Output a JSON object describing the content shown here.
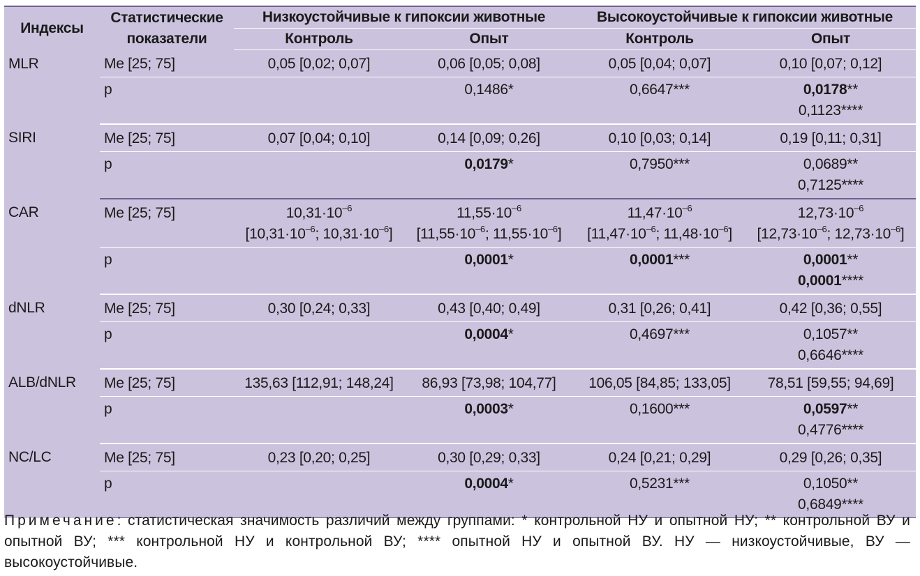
{
  "table": {
    "headers": {
      "index": "Индексы",
      "stat": "Статистические показатели",
      "low_group": "Низкоустойчивые к гипоксии животные",
      "high_group": "Высокоустойчивые к гипоксии животные",
      "control": "Контроль",
      "experiment": "Опыт"
    },
    "rows": [
      {
        "index": "MLR",
        "me_label": "Me [25; 75]",
        "p_label": "p",
        "me": [
          "0,05 [0,02; 0,07]",
          "0,06 [0,05; 0,08]",
          "0,05 [0,04; 0,07]",
          "0,10 [0,07; 0,12]"
        ],
        "p_low_exp": {
          "val": "0,1486",
          "mark": "*"
        },
        "p_high_ctrl": {
          "val": "0,6647",
          "mark": "***"
        },
        "p_high_exp_1": {
          "val": "0,0178",
          "mark": "**"
        },
        "p_high_exp_2": {
          "val": "0,1123",
          "mark": "****"
        }
      },
      {
        "index": "SIRI",
        "me_label": "Me [25; 75]",
        "p_label": "p",
        "me": [
          "0,07 [0,04; 0,10]",
          "0,14 [0,09; 0,26]",
          "0,10 [0,03; 0,14]",
          "0,19 [0,11; 0,31]"
        ],
        "p_low_exp": {
          "val": "0,0179",
          "mark": "*"
        },
        "p_high_ctrl": {
          "val": "0,7950",
          "mark": "***"
        },
        "p_high_exp_1": {
          "val": "0,0689",
          "mark": "**"
        },
        "p_high_exp_2": {
          "val": "0,7125",
          "mark": "****"
        }
      },
      {
        "index": "CAR",
        "me_label": "Me [25; 75]",
        "p_label": "p",
        "me_exp": "–6",
        "me_line1": [
          "10,31·10",
          "11,55·10",
          "11,47·10",
          "12,73·10"
        ],
        "me_line2": [
          [
            "[10,31·10",
            "; 10,31·10",
            "]"
          ],
          [
            "[11,55·10",
            "; 11,55·10",
            "]"
          ],
          [
            "[11,47·10",
            "; 11,48·10",
            "]"
          ],
          [
            "[12,73·10",
            "; 12,73·10",
            "]"
          ]
        ],
        "p_low_exp": {
          "val": "0,0001",
          "mark": "*"
        },
        "p_high_ctrl": {
          "val": "0,0001",
          "mark": "***"
        },
        "p_high_exp_1": {
          "val": "0,0001",
          "mark": "**"
        },
        "p_high_exp_2": {
          "val": "0,0001",
          "mark": "****"
        }
      },
      {
        "index": "dNLR",
        "me_label": "Me [25; 75]",
        "p_label": "p",
        "me": [
          "0,30 [0,24; 0,33]",
          "0,43 [0,40; 0,49]",
          "0,31 [0,26; 0,41]",
          "0,42 [0,36; 0,55]"
        ],
        "p_low_exp": {
          "val": "0,0004",
          "mark": "*"
        },
        "p_high_ctrl": {
          "val": "0,4697",
          "mark": "***"
        },
        "p_high_exp_1": {
          "val": "0,1057",
          "mark": "**"
        },
        "p_high_exp_2": {
          "val": "0,6646",
          "mark": "****"
        }
      },
      {
        "index": "ALB/dNLR",
        "me_label": "Me [25; 75]",
        "p_label": "p",
        "me": [
          "135,63 [112,91; 148,24]",
          "86,93 [73,98; 104,77]",
          "106,05 [84,85; 133,05]",
          "78,51 [59,55; 94,69]"
        ],
        "p_low_exp": {
          "val": "0,0003",
          "mark": "*"
        },
        "p_high_ctrl": {
          "val": "0,1600",
          "mark": "***"
        },
        "p_high_exp_1": {
          "val": "0,0597",
          "mark": "**"
        },
        "p_high_exp_2": {
          "val": "0,4776",
          "mark": "****"
        }
      },
      {
        "index": "NC/LC",
        "me_label": "Me [25; 75]",
        "p_label": "p",
        "me": [
          "0,23 [0,20; 0,25]",
          "0,30 [0,29; 0,33]",
          "0,24 [0,21; 0,29]",
          "0,29 [0,26; 0,35]"
        ],
        "p_low_exp": {
          "val": "0,0004",
          "mark": "*"
        },
        "p_high_ctrl": {
          "val": "0,5231",
          "mark": "***"
        },
        "p_high_exp_1": {
          "val": "0,1050",
          "mark": "**"
        },
        "p_high_exp_2": {
          "val": "0,6849",
          "mark": "****"
        }
      }
    ]
  },
  "note": {
    "head": "Примечание",
    "text": ": статистическая значимость различий между группами: * контрольной НУ и опытной НУ; ** контрольной ВУ и опытной ВУ; *** контрольной НУ и контрольной ВУ; **** опытной НУ и опытной ВУ. НУ — низкоустойчивые, ВУ — высокоустойчивые."
  },
  "colors": {
    "table_bg": "#cbc3dd",
    "rule_dark": "#6f5f92",
    "rule_light": "#ffffff"
  }
}
